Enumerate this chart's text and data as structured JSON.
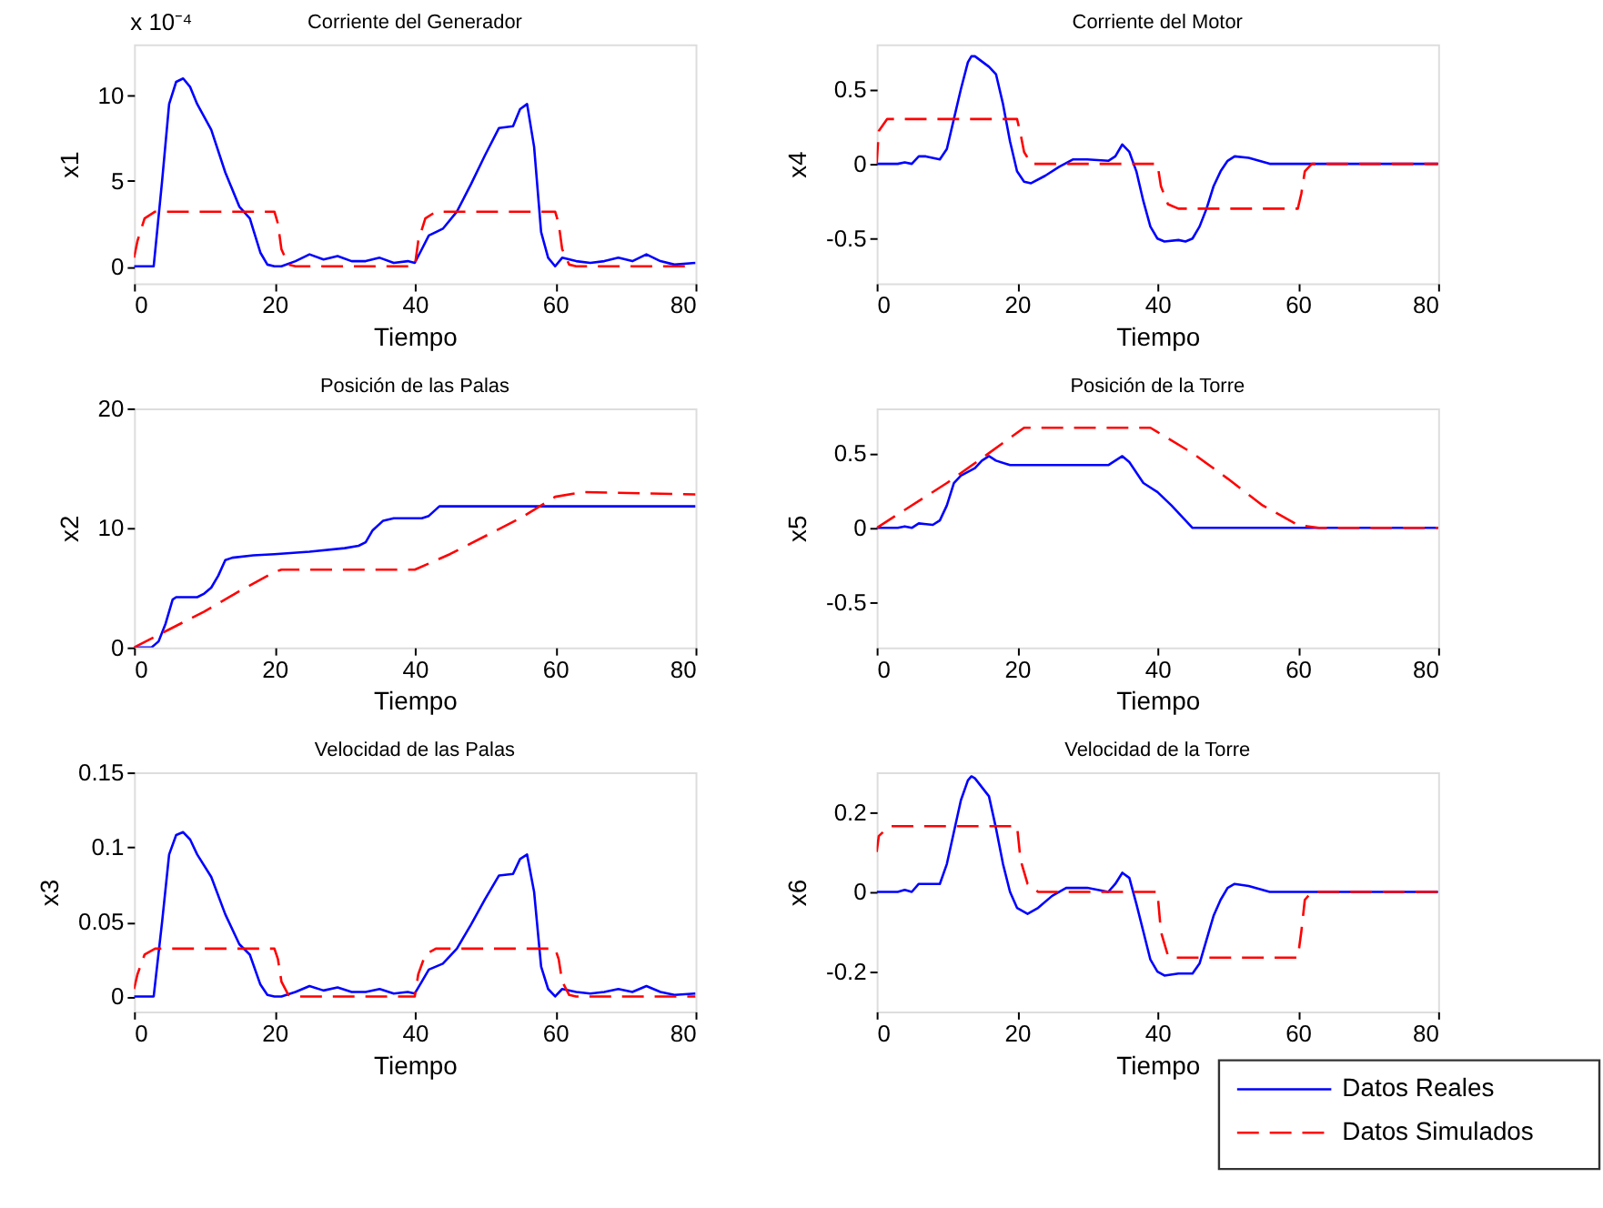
{
  "chart_data": [
    {
      "type": "line",
      "title": "Corriente del Generador",
      "xlabel": "Tiempo",
      "ylabel": "x1",
      "annotations": [
        "x 10⁻⁴"
      ],
      "xlim": [
        0,
        80
      ],
      "xticks": [
        0,
        20,
        40,
        60,
        80
      ],
      "ylim": [
        -1,
        13
      ],
      "yticks": [
        0,
        5,
        10
      ],
      "grid": false,
      "series": [
        {
          "color": "#0000ff",
          "line_style": "solid",
          "x": [
            0,
            2.8,
            4,
            5,
            6,
            7,
            8,
            9,
            11,
            13,
            15,
            16.5,
            18,
            19,
            20,
            21,
            23,
            25,
            27,
            29,
            31,
            33,
            35,
            37,
            39,
            40,
            41,
            42,
            44,
            46,
            48,
            50,
            52,
            54,
            55,
            56,
            57,
            58,
            59,
            60,
            61,
            63,
            65,
            67,
            69,
            71,
            73,
            75,
            77,
            80
          ],
          "values": [
            0,
            0,
            5,
            9.5,
            10.8,
            11,
            10.5,
            9.5,
            8,
            5.5,
            3.5,
            2.8,
            0.8,
            0.1,
            0,
            0,
            0.3,
            0.7,
            0.4,
            0.6,
            0.3,
            0.3,
            0.5,
            0.2,
            0.3,
            0.2,
            1,
            1.8,
            2.2,
            3.2,
            4.8,
            6.5,
            8.1,
            8.2,
            9.2,
            9.5,
            7,
            2,
            0.5,
            0,
            0.5,
            0.3,
            0.2,
            0.3,
            0.5,
            0.3,
            0.7,
            0.3,
            0.1,
            0.2
          ]
        },
        {
          "color": "#ff0000",
          "line_style": "dashed",
          "x": [
            0,
            0.5,
            1.5,
            3,
            20,
            20.5,
            21,
            22,
            23,
            40,
            40.5,
            41.5,
            43,
            60,
            60.5,
            61,
            62,
            63,
            80
          ],
          "values": [
            0.5,
            1.5,
            2.8,
            3.2,
            3.2,
            2.5,
            1,
            0.1,
            0,
            0,
            1.5,
            2.8,
            3.2,
            3.2,
            2.5,
            1,
            0.1,
            0,
            0
          ]
        }
      ]
    },
    {
      "type": "line",
      "title": "Corriente del Motor",
      "xlabel": "Tiempo",
      "ylabel": "x4",
      "xlim": [
        0,
        80
      ],
      "xticks": [
        0,
        20,
        40,
        60,
        80
      ],
      "ylim": [
        -0.8,
        0.8
      ],
      "yticks": [
        -0.5,
        0,
        0.5
      ],
      "grid": false,
      "series": [
        {
          "color": "#0000ff",
          "line_style": "solid",
          "x": [
            0,
            3,
            4,
            5,
            6,
            7,
            9,
            10,
            11,
            12,
            13,
            13.5,
            14,
            16,
            17,
            18,
            19,
            20,
            21,
            22,
            24,
            26,
            28,
            30,
            33,
            34,
            35,
            36,
            37,
            38,
            39,
            40,
            41,
            43,
            44,
            45,
            46,
            47,
            48,
            49,
            50,
            51,
            53,
            56,
            60,
            80
          ],
          "values": [
            0,
            0,
            0.01,
            0,
            0.05,
            0.05,
            0.03,
            0.1,
            0.3,
            0.5,
            0.68,
            0.72,
            0.72,
            0.65,
            0.6,
            0.4,
            0.15,
            -0.05,
            -0.12,
            -0.13,
            -0.08,
            -0.02,
            0.03,
            0.03,
            0.02,
            0.05,
            0.13,
            0.08,
            -0.05,
            -0.25,
            -0.42,
            -0.5,
            -0.52,
            -0.51,
            -0.52,
            -0.5,
            -0.42,
            -0.3,
            -0.15,
            -0.05,
            0.02,
            0.05,
            0.04,
            0,
            0,
            0
          ]
        },
        {
          "color": "#ff0000",
          "line_style": "dashed",
          "x": [
            0,
            0.3,
            1.5,
            20,
            20.5,
            21,
            22,
            40,
            40.5,
            41.5,
            43,
            60,
            60.5,
            61,
            62,
            80
          ],
          "values": [
            0,
            0.22,
            0.3,
            0.3,
            0.2,
            0.08,
            0,
            0,
            -0.15,
            -0.27,
            -0.3,
            -0.3,
            -0.2,
            -0.05,
            0,
            0
          ]
        }
      ]
    },
    {
      "type": "line",
      "title": "Posición de las Palas",
      "xlabel": "Tiempo",
      "ylabel": "x2",
      "xlim": [
        0,
        80
      ],
      "xticks": [
        0,
        20,
        40,
        60,
        80
      ],
      "ylim": [
        0,
        20
      ],
      "yticks": [
        0,
        10,
        20
      ],
      "grid": false,
      "series": [
        {
          "color": "#0000ff",
          "line_style": "solid",
          "x": [
            0,
            2.5,
            3.5,
            4.5,
            5.5,
            6,
            9,
            10,
            11,
            12,
            13,
            14,
            17,
            20,
            25,
            30,
            32,
            33,
            34,
            35.5,
            37,
            41,
            42,
            43.5,
            80
          ],
          "values": [
            0,
            0,
            0.5,
            2,
            4,
            4.2,
            4.2,
            4.5,
            5,
            6,
            7.3,
            7.5,
            7.7,
            7.8,
            8,
            8.3,
            8.5,
            8.8,
            9.8,
            10.6,
            10.8,
            10.8,
            11,
            11.8,
            11.8
          ]
        },
        {
          "color": "#ff0000",
          "line_style": "dashed",
          "x": [
            0,
            5,
            10,
            15,
            20,
            21,
            40,
            45,
            50,
            55,
            60,
            64,
            80
          ],
          "values": [
            0,
            1.5,
            3,
            4.7,
            6.3,
            6.5,
            6.5,
            7.8,
            9.3,
            10.8,
            12.6,
            13,
            12.8
          ]
        }
      ]
    },
    {
      "type": "line",
      "title": "Posición de la Torre",
      "xlabel": "Tiempo",
      "ylabel": "x5",
      "xlim": [
        0,
        80
      ],
      "xticks": [
        0,
        20,
        40,
        60,
        80
      ],
      "ylim": [
        -0.8,
        0.8
      ],
      "yticks": [
        -0.5,
        0,
        0.5
      ],
      "grid": false,
      "series": [
        {
          "color": "#0000ff",
          "line_style": "solid",
          "x": [
            0,
            3,
            4,
            5,
            6,
            8,
            9,
            10,
            11,
            12,
            14,
            15,
            16,
            17,
            19,
            33,
            34,
            35,
            36,
            38,
            40,
            42,
            45,
            80
          ],
          "values": [
            0,
            0,
            0.01,
            0,
            0.03,
            0.02,
            0.05,
            0.15,
            0.3,
            0.35,
            0.4,
            0.45,
            0.48,
            0.45,
            0.42,
            0.42,
            0.45,
            0.48,
            0.44,
            0.3,
            0.24,
            0.15,
            0,
            0
          ]
        },
        {
          "color": "#ff0000",
          "line_style": "dashed",
          "x": [
            0,
            10,
            16,
            21,
            39,
            45,
            50,
            55,
            60,
            63,
            80
          ],
          "values": [
            0,
            0.3,
            0.5,
            0.67,
            0.67,
            0.5,
            0.33,
            0.15,
            0.02,
            0,
            0
          ]
        }
      ]
    },
    {
      "type": "line",
      "title": "Velocidad de las Palas",
      "xlabel": "Tiempo",
      "ylabel": "x3",
      "xlim": [
        0,
        80
      ],
      "xticks": [
        0,
        20,
        40,
        60,
        80
      ],
      "ylim": [
        -0.01,
        0.15
      ],
      "yticks": [
        0,
        0.05,
        0.1,
        0.15
      ],
      "grid": false,
      "series": [
        {
          "color": "#0000ff",
          "line_style": "solid",
          "x": [
            0,
            2.8,
            4,
            5,
            6,
            7,
            8,
            9,
            11,
            13,
            15,
            16.5,
            18,
            19,
            20,
            21,
            23,
            25,
            27,
            29,
            31,
            33,
            35,
            37,
            39,
            40,
            41,
            42,
            44,
            46,
            48,
            50,
            52,
            54,
            55,
            56,
            57,
            58,
            59,
            60,
            61,
            63,
            65,
            67,
            69,
            71,
            73,
            75,
            77,
            80
          ],
          "values": [
            0,
            0,
            0.05,
            0.095,
            0.108,
            0.11,
            0.105,
            0.095,
            0.08,
            0.055,
            0.035,
            0.028,
            0.008,
            0.001,
            0,
            0,
            0.003,
            0.007,
            0.004,
            0.006,
            0.003,
            0.003,
            0.005,
            0.002,
            0.003,
            0.002,
            0.01,
            0.018,
            0.022,
            0.032,
            0.048,
            0.065,
            0.081,
            0.082,
            0.092,
            0.095,
            0.07,
            0.02,
            0.005,
            0,
            0.005,
            0.003,
            0.002,
            0.003,
            0.005,
            0.003,
            0.007,
            0.003,
            0.001,
            0.002
          ]
        },
        {
          "color": "#ff0000",
          "line_style": "dashed",
          "x": [
            0,
            0.5,
            1.5,
            3,
            20,
            20.5,
            21,
            22,
            23,
            40,
            40.5,
            41.5,
            43,
            60,
            60.5,
            61,
            62,
            63,
            80
          ],
          "values": [
            0.005,
            0.015,
            0.028,
            0.032,
            0.032,
            0.025,
            0.01,
            0.001,
            0,
            0,
            0.015,
            0.028,
            0.032,
            0.032,
            0.025,
            0.01,
            0.001,
            0,
            0
          ]
        }
      ]
    },
    {
      "type": "line",
      "title": "Velocidad de la Torre",
      "xlabel": "Tiempo",
      "ylabel": "x6",
      "xlim": [
        0,
        80
      ],
      "xticks": [
        0,
        20,
        40,
        60,
        80
      ],
      "ylim": [
        -0.3,
        0.3
      ],
      "yticks": [
        -0.2,
        0,
        0.2
      ],
      "grid": false,
      "legend": "bottom right",
      "series": [
        {
          "name": "Datos Reales",
          "color": "#0000ff",
          "line_style": "solid",
          "x": [
            0,
            3,
            4,
            5,
            6,
            8,
            9,
            10,
            11,
            12,
            13,
            13.5,
            14,
            16,
            17,
            18,
            19,
            20,
            21.5,
            23,
            25,
            27,
            30,
            33,
            34,
            35,
            36,
            37,
            38,
            39,
            40,
            41,
            43,
            45,
            46,
            47,
            48,
            49,
            50,
            51,
            53,
            56,
            80
          ],
          "values": [
            0,
            0,
            0.005,
            0,
            0.02,
            0.02,
            0.02,
            0.07,
            0.15,
            0.23,
            0.28,
            0.29,
            0.285,
            0.24,
            0.16,
            0.07,
            0,
            -0.04,
            -0.055,
            -0.04,
            -0.01,
            0.01,
            0.01,
            0,
            0.02,
            0.048,
            0.035,
            -0.03,
            -0.1,
            -0.17,
            -0.2,
            -0.21,
            -0.205,
            -0.205,
            -0.18,
            -0.12,
            -0.06,
            -0.02,
            0.01,
            0.02,
            0.015,
            0,
            0
          ]
        },
        {
          "name": "Datos Simulados",
          "color": "#ff0000",
          "line_style": "dashed",
          "x": [
            0,
            0.3,
            1.5,
            2,
            20,
            20.5,
            21.5,
            23,
            40,
            40.5,
            41.5,
            42,
            60,
            60.5,
            61,
            62,
            80
          ],
          "values": [
            0.1,
            0.14,
            0.16,
            0.165,
            0.165,
            0.08,
            0.02,
            0,
            0,
            -0.1,
            -0.16,
            -0.165,
            -0.165,
            -0.1,
            -0.02,
            0,
            0
          ]
        }
      ]
    }
  ]
}
